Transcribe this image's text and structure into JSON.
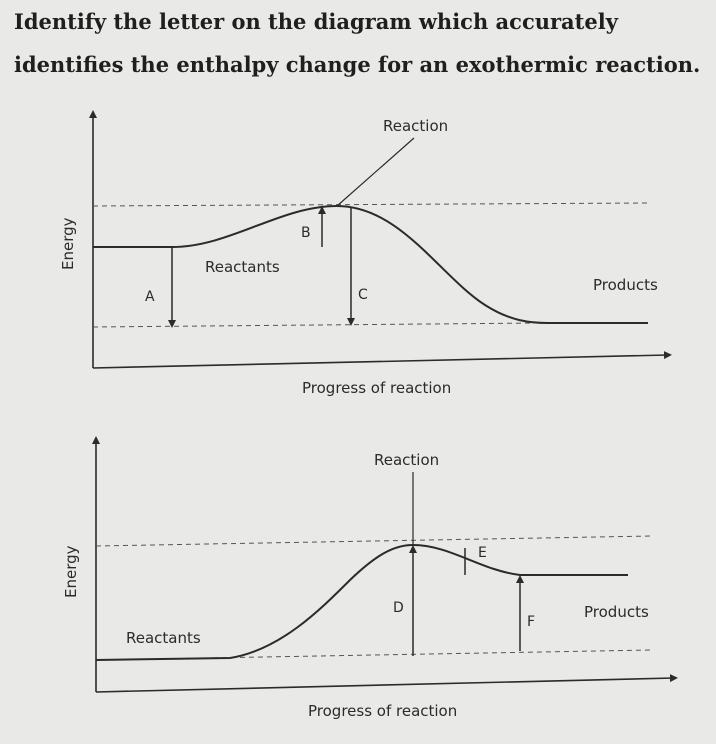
{
  "question": "Identify the letter on the diagram which accurately identifies the enthalpy change for an exothermic reaction.",
  "diagram1": {
    "y_axis_label": "Energy",
    "x_axis_label": "Progress of reaction",
    "callout_label": "Reaction",
    "reactants_label": "Reactants",
    "products_label": "Products",
    "letter_a": "A",
    "letter_b": "B",
    "letter_c": "C"
  },
  "diagram2": {
    "y_axis_label": "Energy",
    "x_axis_label": "Progress of reaction",
    "callout_label": "Reaction",
    "reactants_label": "Reactants",
    "products_label": "Products",
    "letter_d": "D",
    "letter_e": "E",
    "letter_f": "F"
  }
}
